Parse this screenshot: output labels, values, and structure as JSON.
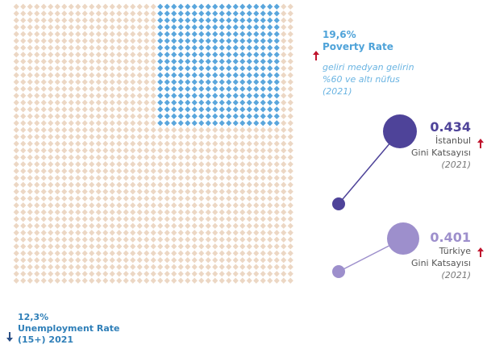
{
  "waffle": {
    "poverty_fraction": 0.196,
    "colors": {
      "base": "#ecd7c4",
      "highlight": "#5aa6dc"
    }
  },
  "poverty": {
    "value": "19,6%",
    "label": "Poverty Rate",
    "desc_line1": "geliri medyan gelirin",
    "desc_line2": "%60 ve altı nüfus",
    "desc_line3": "(2021)",
    "trend": "up",
    "trend_color": "#c0142d"
  },
  "istanbul": {
    "value": "0.434",
    "name": "İstanbul",
    "metric": "Gini Katsayısı",
    "year": "(2021)",
    "trend": "up",
    "color": "#4e4399"
  },
  "turkiye": {
    "value": "0.401",
    "name": "Türkiye",
    "metric": "Gini Katsayısı",
    "year": "(2021)",
    "trend": "up",
    "color": "#9d8fcc"
  },
  "unemployment": {
    "value": "12,3%",
    "label_line1": "Unemployment Rate",
    "label_line2": "(15+) 2021",
    "trend": "down",
    "trend_color": "#2b4f86"
  },
  "icons": {
    "trend_up": "arrow-up-icon",
    "trend_down": "arrow-down-icon"
  }
}
